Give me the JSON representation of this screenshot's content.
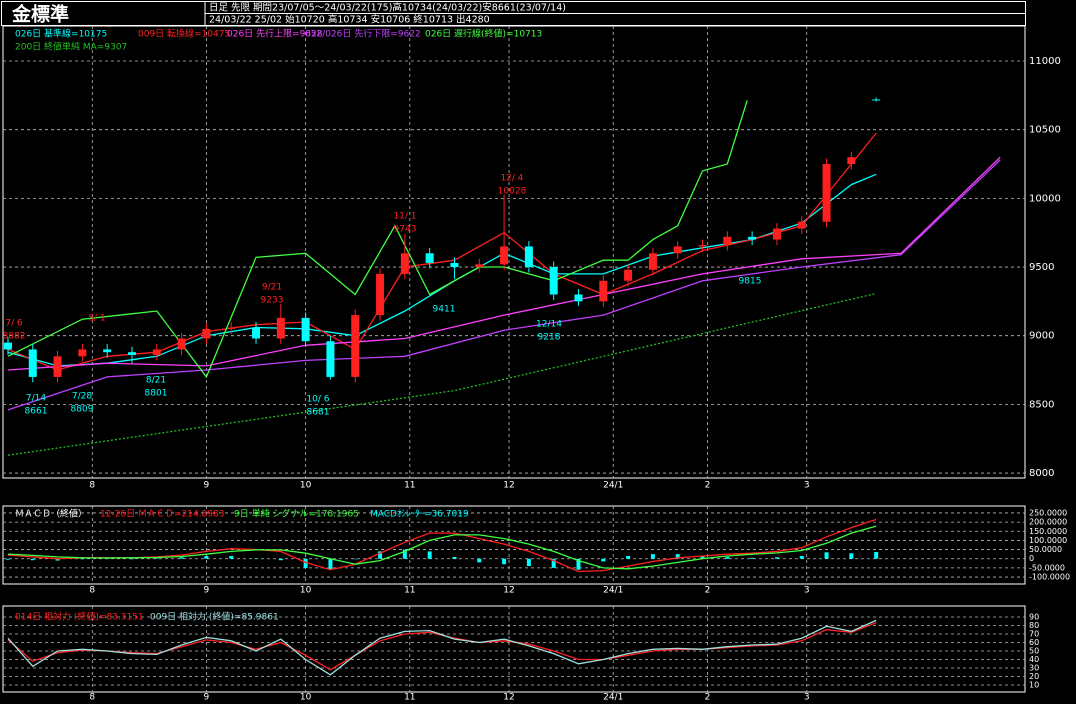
{
  "header": {
    "title": "金標準",
    "line1": "日足 先限 期間23/07/05～24/03/22(175)高10734(24/03/22)安8661(23/07/14)",
    "line2": "24/03/22 25/02 始10720 高10734 安10706 終10713 出4280"
  },
  "chart_data": [
    {
      "type": "candlestick",
      "up_color": "#ff2020",
      "down_color": "#00ffff",
      "x": [
        0,
        5,
        10,
        15,
        20,
        25,
        30,
        35,
        40,
        45,
        50,
        55,
        60,
        65,
        70,
        75,
        80,
        85,
        90,
        95,
        100,
        105,
        110,
        115,
        120,
        125,
        130,
        135,
        140,
        145,
        150,
        155,
        160,
        165,
        170,
        175
      ],
      "open": [
        8950,
        8900,
        8700,
        8850,
        8900,
        8880,
        8860,
        8900,
        8980,
        9050,
        9060,
        8980,
        9130,
        8960,
        8700,
        9150,
        9450,
        9600,
        9530,
        9500,
        9520,
        9650,
        9500,
        9300,
        9250,
        9400,
        9480,
        9600,
        9650,
        9660,
        9720,
        9700,
        9780,
        9830,
        10250,
        10720
      ],
      "high": [
        8990,
        8940,
        8890,
        8940,
        8940,
        8920,
        8940,
        9020,
        9090,
        9100,
        9100,
        9233,
        9170,
        9000,
        9190,
        9490,
        9743,
        9640,
        9570,
        9560,
        10028,
        9690,
        9540,
        9340,
        9440,
        9520,
        9640,
        9690,
        9700,
        9760,
        9760,
        9820,
        9870,
        10290,
        10340,
        10734
      ],
      "low": [
        8860,
        8661,
        8660,
        8810,
        8840,
        8801,
        8820,
        8860,
        8940,
        9010,
        8940,
        8940,
        8920,
        8681,
        8660,
        9110,
        9410,
        9490,
        9411,
        9460,
        9480,
        9460,
        9260,
        9218,
        9210,
        9360,
        9440,
        9560,
        9610,
        9620,
        9660,
        9660,
        9740,
        9790,
        10210,
        10706
      ],
      "close": [
        8900,
        8700,
        8850,
        8900,
        8880,
        8860,
        8900,
        8980,
        9050,
        9060,
        8980,
        9130,
        8960,
        8700,
        9150,
        9450,
        9600,
        9530,
        9500,
        9520,
        9650,
        9500,
        9300,
        9250,
        9400,
        9480,
        9600,
        9650,
        9660,
        9720,
        9700,
        9780,
        9830,
        10250,
        10300,
        10713
      ],
      "series": [
        {
          "name": "026日 基準線=10175",
          "color": "#00ffff",
          "x": [
            0,
            10,
            20,
            30,
            40,
            50,
            60,
            70,
            80,
            90,
            100,
            110,
            120,
            130,
            140,
            150,
            160,
            170,
            175
          ],
          "values": [
            8880,
            8780,
            8800,
            8850,
            9000,
            9060,
            9050,
            9000,
            9180,
            9400,
            9600,
            9450,
            9450,
            9580,
            9640,
            9700,
            9820,
            10100,
            10175
          ]
        },
        {
          "name": "009日 転換線=10475",
          "color": "#ff2020",
          "x": [
            0,
            10,
            20,
            30,
            40,
            50,
            60,
            70,
            80,
            90,
            100,
            110,
            120,
            130,
            140,
            150,
            160,
            170,
            175
          ],
          "values": [
            8900,
            8750,
            8850,
            8880,
            9030,
            9080,
            9100,
            8900,
            9500,
            9550,
            9750,
            9450,
            9300,
            9450,
            9620,
            9700,
            9800,
            10250,
            10475
          ]
        },
        {
          "name": "026日 先行上限=9628",
          "color": "#ff40ff",
          "x": [
            0,
            20,
            40,
            60,
            80,
            100,
            120,
            140,
            160,
            180,
            200
          ],
          "values": [
            8750,
            8800,
            8780,
            8930,
            8980,
            9150,
            9300,
            9450,
            9560,
            9600,
            10300
          ]
        },
        {
          "name": "052/026日 先行下限=9622",
          "color": "#c040ff",
          "x": [
            0,
            20,
            40,
            60,
            80,
            100,
            120,
            140,
            160,
            180,
            200
          ],
          "values": [
            8460,
            8700,
            8750,
            8820,
            8850,
            9040,
            9150,
            9400,
            9500,
            9590,
            10280
          ]
        },
        {
          "name": "026日 遅行線(終値)=10713",
          "color": "#40ff40",
          "x": [
            0,
            15,
            30,
            40,
            50,
            60,
            70,
            78,
            85,
            95,
            100,
            110,
            120,
            125,
            130,
            135,
            140,
            145,
            149
          ],
          "values": [
            8850,
            9120,
            9180,
            8700,
            9570,
            9600,
            9300,
            9800,
            9300,
            9500,
            9500,
            9400,
            9550,
            9550,
            9700,
            9800,
            10200,
            10250,
            10713
          ]
        },
        {
          "name": "200日 終値単純 MA=9307",
          "color": "#20c020",
          "dashed": true,
          "x": [
            0,
            90,
            175
          ],
          "values": [
            8130,
            8600,
            9307
          ]
        }
      ],
      "annotations": [
        {
          "date": "7/ 6",
          "value": 8882,
          "color": "#ff2020"
        },
        {
          "date": "8/ 1",
          "color": "#ff2020"
        },
        {
          "date": "9/21",
          "value": 9233,
          "color": "#ff2020"
        },
        {
          "date": "11/ 1",
          "value": 9743,
          "color": "#ff2020"
        },
        {
          "date": "12/ 4",
          "value": 10028,
          "color": "#ff2020"
        },
        {
          "date": "7/14",
          "value": 8661,
          "color": "#00ffff"
        },
        {
          "date": "7/28",
          "value": 8809,
          "color": "#00ffff"
        },
        {
          "date": "8/21",
          "value": 8801,
          "color": "#00ffff"
        },
        {
          "date": "10/ 6",
          "value": 8681,
          "color": "#00ffff"
        },
        {
          "date": "12/14",
          "value": 9218,
          "color": "#00ffff"
        },
        {
          "value": 9411,
          "color": "#00ffff"
        },
        {
          "value": 9815,
          "color": "#00ffff"
        }
      ],
      "xlim": [
        -1,
        205
      ],
      "xticks": [
        {
          "value": 17,
          "label": "8"
        },
        {
          "value": 40,
          "label": "9"
        },
        {
          "value": 60,
          "label": "10"
        },
        {
          "value": 81,
          "label": "11"
        },
        {
          "value": 101,
          "label": "12"
        },
        {
          "value": 122,
          "label": "24/1"
        },
        {
          "value": 141,
          "label": "2"
        },
        {
          "value": 161,
          "label": "3"
        }
      ],
      "ylim": [
        7964,
        11255
      ],
      "yticks": [
        8000,
        8500,
        9000,
        9500,
        10000,
        10500,
        11000
      ],
      "grid": true
    },
    {
      "type": "macd",
      "title": "ＭＡＣＤ（終値）",
      "x": [
        0,
        5,
        10,
        15,
        20,
        25,
        30,
        35,
        40,
        45,
        50,
        55,
        60,
        65,
        70,
        75,
        80,
        85,
        90,
        95,
        100,
        105,
        110,
        115,
        120,
        125,
        130,
        135,
        140,
        145,
        150,
        155,
        160,
        165,
        170,
        175
      ],
      "series": [
        {
          "name": "12-26日 ＭＡＣＤ=214.8983",
          "color": "#ff2020",
          "kind": "line",
          "values": [
            20,
            10,
            0,
            5,
            5,
            5,
            10,
            20,
            40,
            55,
            50,
            40,
            -20,
            -60,
            -30,
            30,
            90,
            140,
            140,
            110,
            80,
            40,
            -10,
            -70,
            -65,
            -40,
            -15,
            5,
            15,
            25,
            30,
            40,
            60,
            120,
            170,
            214.8983
          ]
        },
        {
          "name": "9日 単純 シグナル=178.1965",
          "color": "#40ff40",
          "kind": "line",
          "values": [
            25,
            18,
            10,
            5,
            4,
            5,
            7,
            12,
            25,
            40,
            48,
            48,
            30,
            0,
            -30,
            -10,
            40,
            100,
            130,
            130,
            110,
            80,
            40,
            -10,
            -50,
            -55,
            -40,
            -20,
            0,
            15,
            25,
            32,
            45,
            85,
            140,
            178.1965
          ]
        },
        {
          "name": "MACDｵｼﾚｰﾀｰ=36.7019",
          "color": "#00ffff",
          "kind": "bar",
          "values": [
            -5,
            -8,
            -10,
            0,
            1,
            0,
            3,
            8,
            15,
            15,
            2,
            -8,
            -50,
            -60,
            0,
            40,
            50,
            40,
            10,
            -20,
            -30,
            -40,
            -50,
            -60,
            -15,
            15,
            25,
            25,
            15,
            10,
            5,
            8,
            15,
            35,
            30,
            36.7019
          ]
        }
      ],
      "xlim": [
        -1,
        205
      ],
      "xticks": [
        {
          "value": 17,
          "label": "8"
        },
        {
          "value": 40,
          "label": "9"
        },
        {
          "value": 60,
          "label": "10"
        },
        {
          "value": 81,
          "label": "11"
        },
        {
          "value": 101,
          "label": "12"
        },
        {
          "value": 122,
          "label": "24/1"
        },
        {
          "value": 141,
          "label": "2"
        },
        {
          "value": 161,
          "label": "3"
        }
      ],
      "ylim": [
        -138,
        288
      ],
      "yticks": [
        {
          "value": 250,
          "label": "250.0000"
        },
        {
          "value": 200,
          "label": "200.0000"
        },
        {
          "value": 150,
          "label": "150.0000"
        },
        {
          "value": 100,
          "label": "100.0000"
        },
        {
          "value": 50,
          "label": "50.0000"
        },
        {
          "value": 0,
          "label": "0"
        },
        {
          "value": -50,
          "label": "-50.0000"
        },
        {
          "value": -100,
          "label": "-100.0000"
        }
      ],
      "grid": true
    },
    {
      "type": "line",
      "x": [
        0,
        5,
        10,
        15,
        20,
        25,
        30,
        35,
        40,
        45,
        50,
        55,
        60,
        65,
        70,
        75,
        80,
        85,
        90,
        95,
        100,
        105,
        110,
        115,
        120,
        125,
        130,
        135,
        140,
        145,
        150,
        155,
        160,
        165,
        170,
        175
      ],
      "series": [
        {
          "name": "014日 相対力 (終値)=83.3151",
          "color": "#ff2020",
          "values": [
            63,
            38,
            48,
            51,
            50,
            48,
            47,
            55,
            63,
            60,
            52,
            60,
            45,
            28,
            45,
            62,
            70,
            72,
            65,
            60,
            62,
            58,
            50,
            40,
            40,
            45,
            50,
            52,
            52,
            54,
            56,
            57,
            62,
            75,
            72,
            83.3151
          ]
        },
        {
          "name": "009日 相対力 (終値)=85.9861",
          "color": "#a0e0e0",
          "values": [
            65,
            32,
            50,
            52,
            50,
            47,
            46,
            57,
            66,
            62,
            50,
            64,
            40,
            22,
            45,
            65,
            73,
            74,
            64,
            60,
            64,
            56,
            47,
            35,
            40,
            47,
            52,
            53,
            52,
            55,
            57,
            58,
            65,
            79,
            73,
            85.9861
          ]
        }
      ],
      "xlim": [
        -1,
        205
      ],
      "xticks": [
        {
          "value": 17,
          "label": "8"
        },
        {
          "value": 40,
          "label": "9"
        },
        {
          "value": 60,
          "label": "10"
        },
        {
          "value": 81,
          "label": "11"
        },
        {
          "value": 101,
          "label": "12"
        },
        {
          "value": 122,
          "label": "24/1"
        },
        {
          "value": 141,
          "label": "2"
        },
        {
          "value": 161,
          "label": "3"
        }
      ],
      "ylim": [
        1.8,
        102.9
      ],
      "yticks": [
        90,
        80,
        70,
        60,
        50,
        40,
        30,
        20,
        10
      ],
      "grid": true
    }
  ]
}
